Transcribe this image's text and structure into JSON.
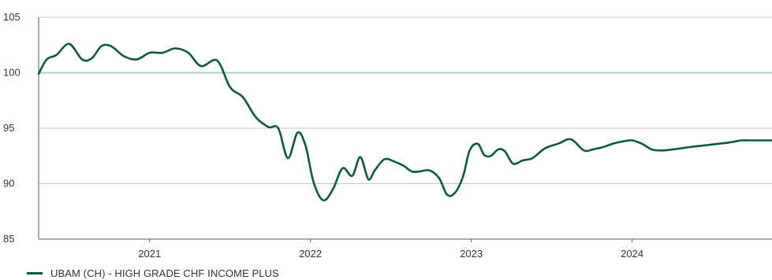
{
  "colors": {
    "series": "#0d5a3a",
    "reference_line": "#a9d0b8",
    "grid": "#c4c4c4",
    "axis": "#555555",
    "text": "#333333"
  },
  "chart_data": {
    "type": "line",
    "title": "",
    "xlabel": "",
    "ylabel": "",
    "ylim": [
      85,
      105
    ],
    "xlim": [
      2020.31,
      2024.87
    ],
    "yticks": [
      85,
      90,
      95,
      100,
      105
    ],
    "xticks": [
      2021,
      2022,
      2023,
      2024
    ],
    "grid": "horizontal",
    "reference_line": 100,
    "legend_position": "bottom-left",
    "series": [
      {
        "name": "UBAM (CH) - HIGH GRADE CHF INCOME PLUS",
        "x": [
          2020.31,
          2020.36,
          2020.42,
          2020.5,
          2020.58,
          2020.64,
          2020.7,
          2020.76,
          2020.84,
          2020.92,
          2021.0,
          2021.08,
          2021.16,
          2021.24,
          2021.32,
          2021.42,
          2021.5,
          2021.58,
          2021.66,
          2021.74,
          2021.8,
          2021.86,
          2021.92,
          2021.97,
          2022.02,
          2022.08,
          2022.14,
          2022.2,
          2022.26,
          2022.31,
          2022.36,
          2022.4,
          2022.46,
          2022.52,
          2022.58,
          2022.63,
          2022.68,
          2022.74,
          2022.8,
          2022.85,
          2022.9,
          2022.95,
          2022.99,
          2023.04,
          2023.08,
          2023.12,
          2023.17,
          2023.21,
          2023.26,
          2023.32,
          2023.38,
          2023.46,
          2023.54,
          2023.62,
          2023.7,
          2023.76,
          2023.82,
          2023.88,
          2023.94,
          2024.0,
          2024.06,
          2024.12,
          2024.16,
          2024.2,
          2024.26,
          2024.31,
          2024.36,
          2024.42,
          2024.48,
          2024.54,
          2024.6,
          2024.64,
          2024.68,
          2024.73,
          2024.78,
          2024.83,
          2024.87
        ],
        "y": [
          99.9,
          101.2,
          101.6,
          102.6,
          101.2,
          101.3,
          102.4,
          102.4,
          101.5,
          101.2,
          101.8,
          101.8,
          102.2,
          101.8,
          100.6,
          101.1,
          98.7,
          97.8,
          96.0,
          95.1,
          95.0,
          92.3,
          94.6,
          93.4,
          90.1,
          88.5,
          89.5,
          91.4,
          90.7,
          92.4,
          90.4,
          91.2,
          92.2,
          92.0,
          91.6,
          91.1,
          91.1,
          91.2,
          90.5,
          89.0,
          89.2,
          90.7,
          93.0,
          93.6,
          92.6,
          92.5,
          93.1,
          92.9,
          91.8,
          92.1,
          92.3,
          93.2,
          93.6,
          94.0,
          93.0,
          93.1,
          93.3,
          93.6,
          93.8,
          93.9,
          93.6,
          93.1,
          93.0,
          93.0,
          93.1,
          93.2,
          93.3,
          93.4,
          93.5,
          93.6,
          93.7,
          93.8,
          93.9,
          93.9,
          93.9,
          93.9,
          93.9
        ]
      }
    ]
  }
}
